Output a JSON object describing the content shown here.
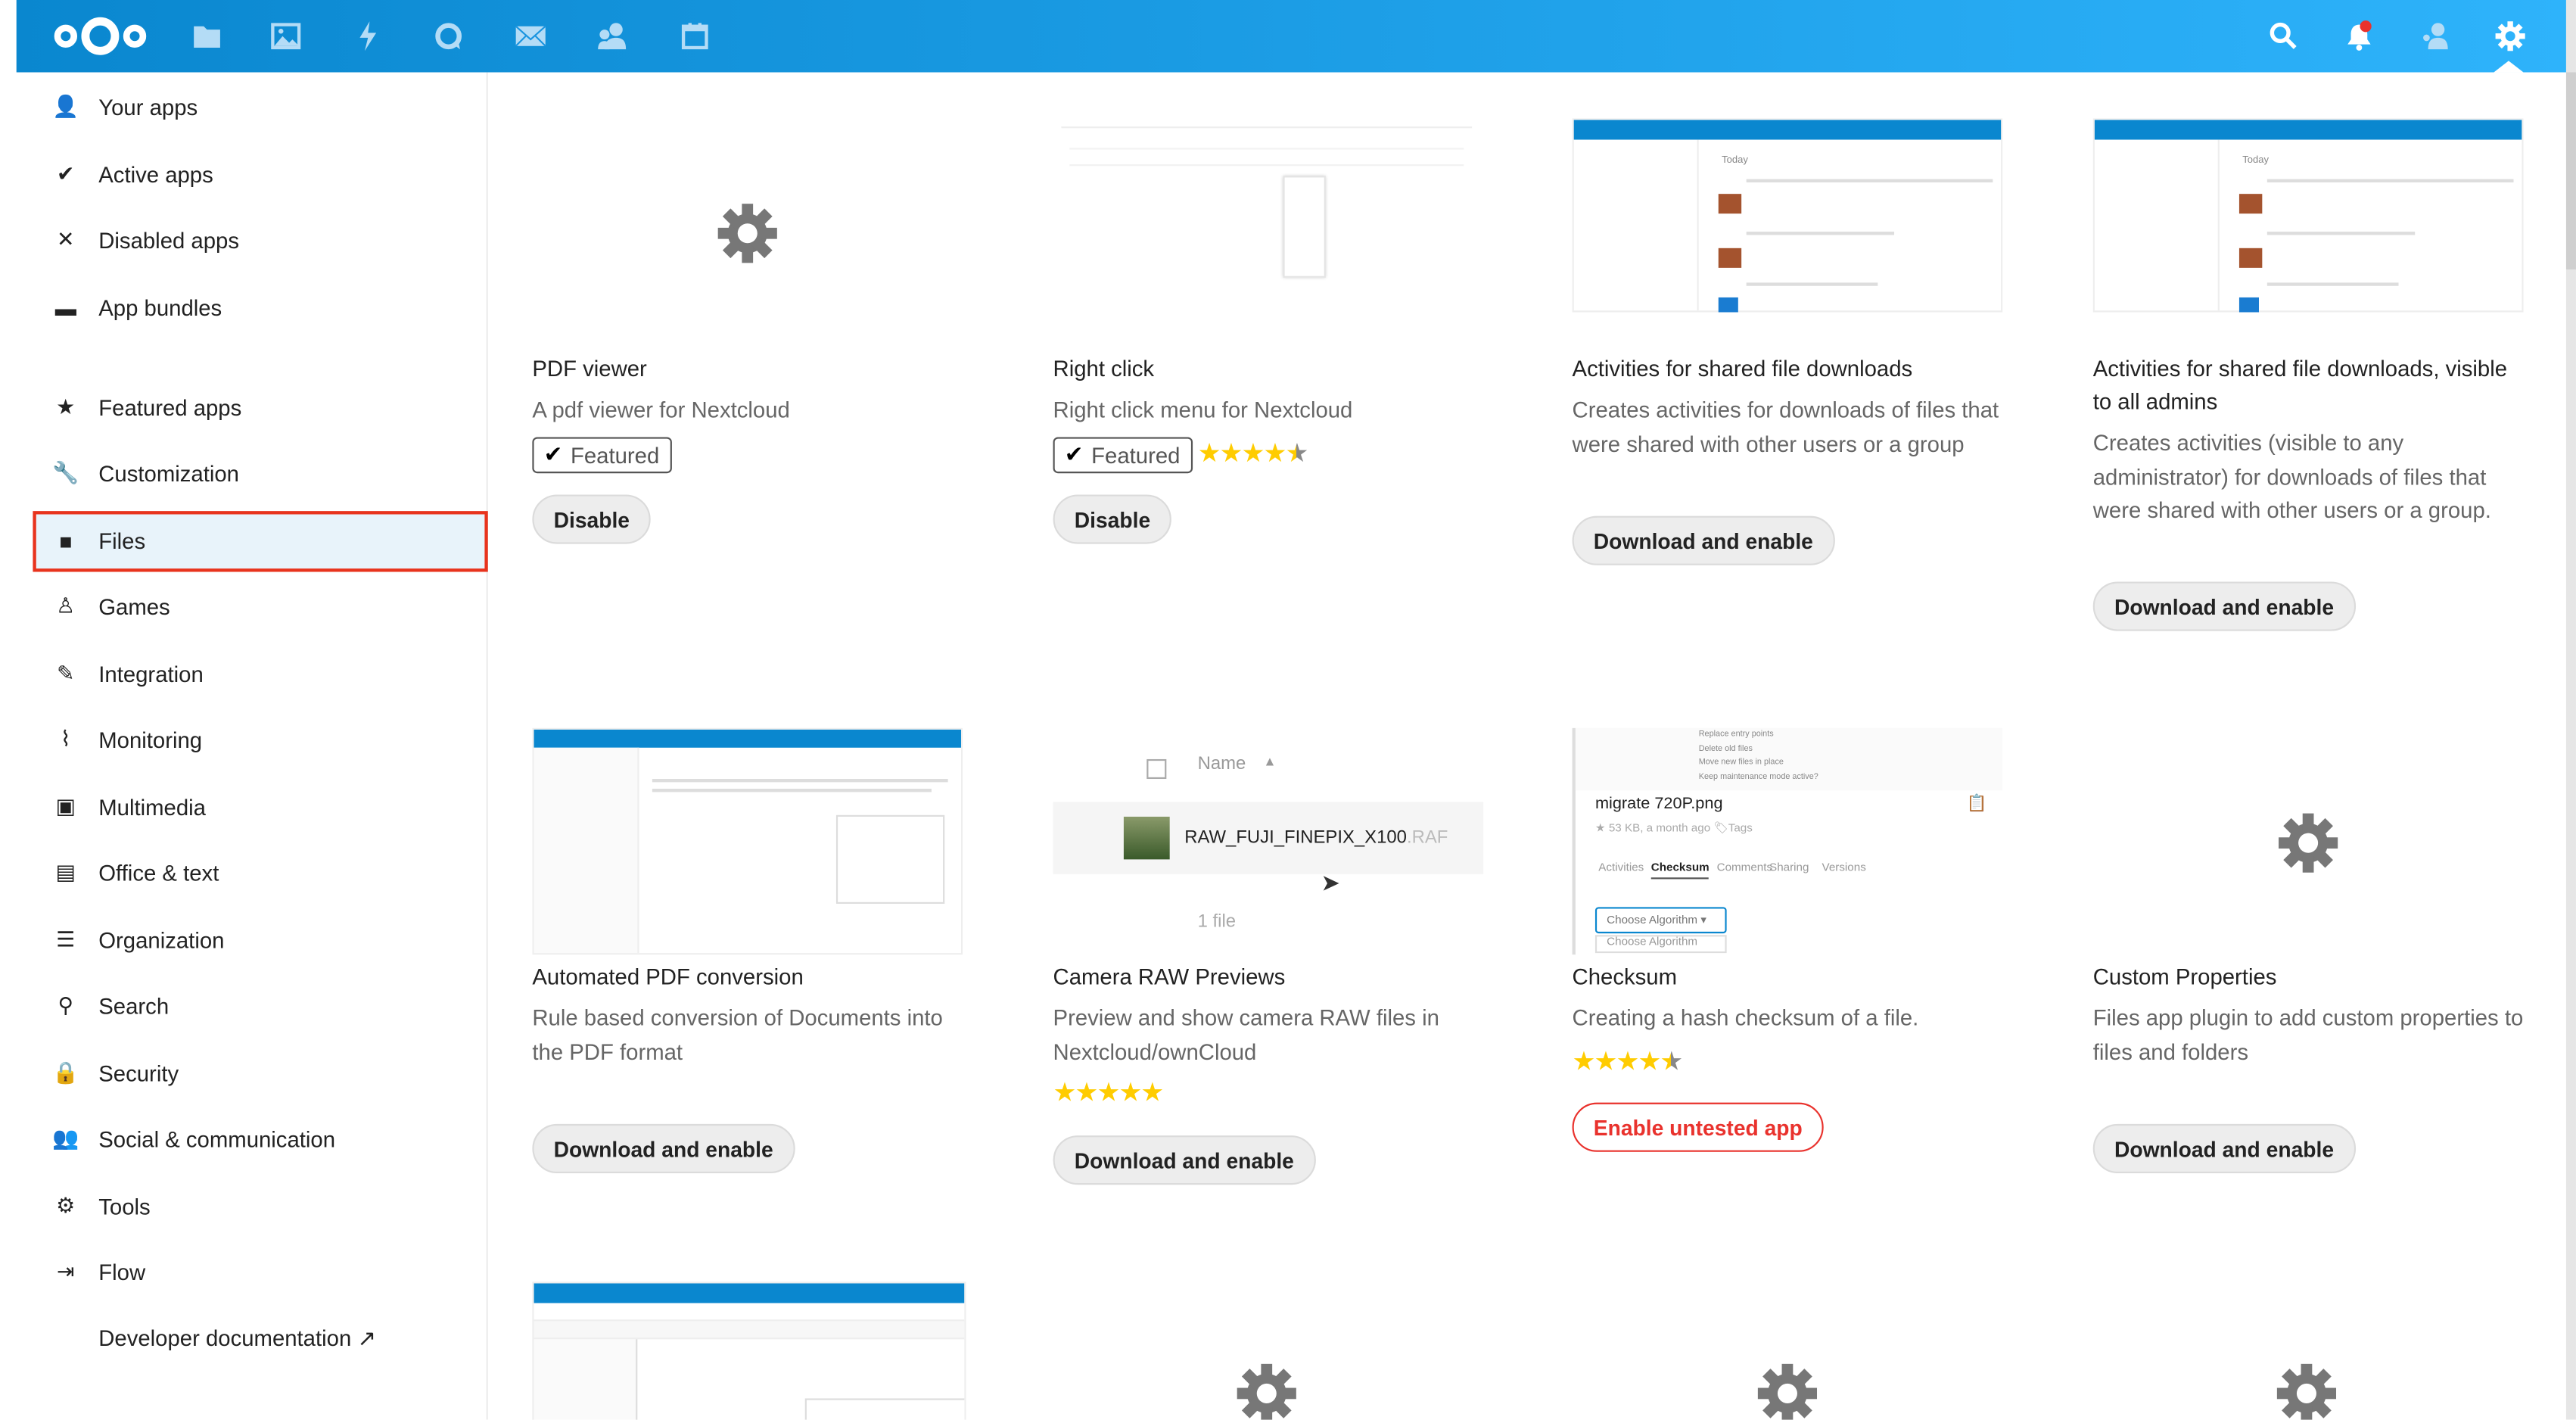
{
  "header": {
    "apps": [
      "files-icon",
      "photos-icon",
      "activity-icon",
      "talk-icon",
      "mail-icon",
      "contacts-icon",
      "calendar-icon"
    ],
    "right": [
      "search-icon",
      "notifications-icon",
      "user-icon",
      "settings-icon"
    ],
    "colors": {
      "start": "#0a87cf",
      "end": "#2eb3fb",
      "notification": "#e9322d"
    }
  },
  "sidebar": {
    "items": [
      {
        "label": "Your apps",
        "icon": "user-icon"
      },
      {
        "label": "Active apps",
        "icon": "check-icon"
      },
      {
        "label": "Disabled apps",
        "icon": "close-icon"
      },
      {
        "label": "App bundles",
        "icon": "archive-icon"
      },
      {
        "label": "Featured apps",
        "icon": "star-icon"
      },
      {
        "label": "Customization",
        "icon": "wrench-icon"
      },
      {
        "label": "Files",
        "icon": "folder-icon",
        "active": true
      },
      {
        "label": "Games",
        "icon": "joystick-icon"
      },
      {
        "label": "Integration",
        "icon": "tool-icon"
      },
      {
        "label": "Monitoring",
        "icon": "pulse-icon"
      },
      {
        "label": "Multimedia",
        "icon": "image-icon"
      },
      {
        "label": "Office & text",
        "icon": "document-icon"
      },
      {
        "label": "Organization",
        "icon": "list-icon"
      },
      {
        "label": "Search",
        "icon": "search-icon"
      },
      {
        "label": "Security",
        "icon": "lock-icon"
      },
      {
        "label": "Social & communication",
        "icon": "users-icon"
      },
      {
        "label": "Tools",
        "icon": "gear-icon"
      },
      {
        "label": "Flow",
        "icon": "flow-icon"
      },
      {
        "label": "Developer documentation ↗",
        "icon": ""
      }
    ]
  },
  "apps": [
    {
      "name": "PDF viewer",
      "desc": "A pdf viewer for Nextcloud",
      "featured": "Featured",
      "button": "Disable"
    },
    {
      "name": "Right click",
      "desc": "Right click menu for Nextcloud",
      "featured": "Featured",
      "rating": 4.5,
      "button": "Disable"
    },
    {
      "name": "Activities for shared file downloads",
      "desc": "Creates activities for downloads of files that were shared with other users or a group",
      "button": "Download and enable"
    },
    {
      "name": "Activities for shared file downloads, visible to all admins",
      "desc": "Creates activities (visible to any administrator) for downloads of files that were shared with other users or a group.",
      "button": "Download and enable"
    },
    {
      "name": "Automated PDF conversion",
      "desc": "Rule based conversion of Documents into the PDF format",
      "button": "Download and enable"
    },
    {
      "name": "Camera RAW Previews",
      "desc": "Preview and show camera RAW files in Nextcloud/ownCloud",
      "rating": 5,
      "button": "Download and enable"
    },
    {
      "name": "Checksum",
      "desc": "Creating a hash checksum of a file.",
      "rating": 4.5,
      "button": "Enable untested app"
    },
    {
      "name": "Custom Properties",
      "desc": "Files app plugin to add custom properties to files and folders",
      "button": "Download and enable"
    }
  ],
  "thumbs": {
    "raw": {
      "header": "Name",
      "file": "RAW_FUJI_FINEPIX_X100",
      "ext": ".RAF",
      "count": "1 file"
    },
    "checksum": {
      "lines": [
        "Replace entry points",
        "Delete old files",
        "Move new files in place",
        "Keep maintenance mode active?"
      ],
      "file": "migrate 720P.png",
      "meta": "53 KB, a month ago",
      "tags": "Tags",
      "tabs": [
        "Activities",
        "Checksum",
        "Comments",
        "Sharing",
        "Versions"
      ],
      "select": "Choose Algorithm",
      "option": "Choose Algorithm"
    },
    "activity": {
      "today": "Today"
    }
  }
}
